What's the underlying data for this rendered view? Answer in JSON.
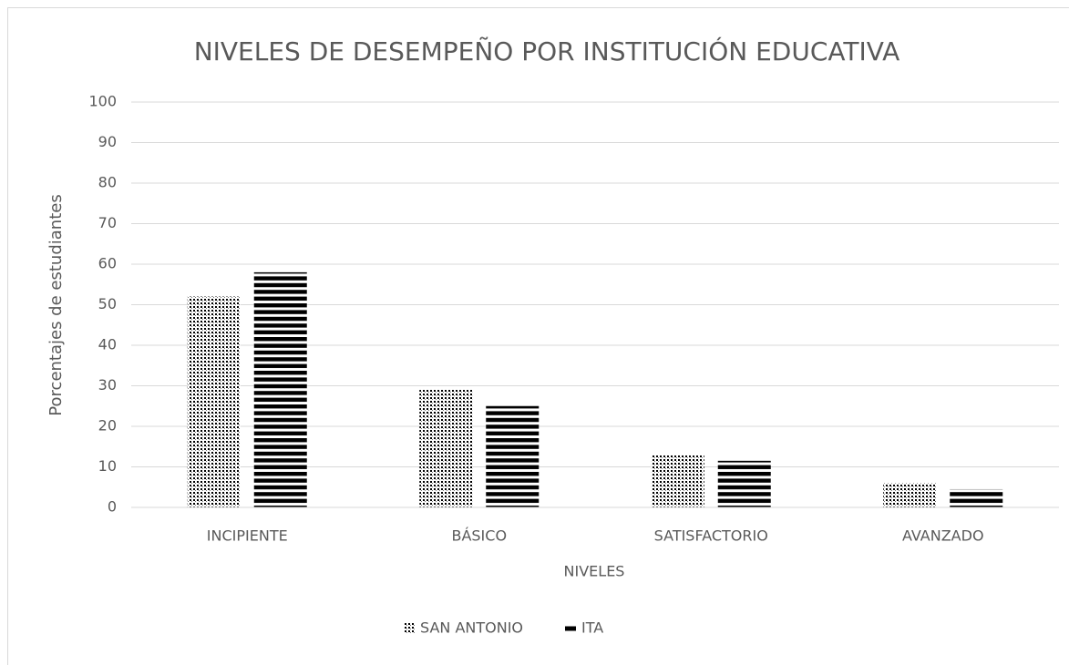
{
  "chart_data": {
    "type": "bar",
    "title": "NIVELES DE DESEMPEÑO POR INSTITUCIÓN EDUCATIVA",
    "x_label": "NIVELES",
    "y_label": "Porcentajes de estudiantes",
    "categories": [
      "INCIPIENTE",
      "BÁSICO",
      "SATISFACTORIO",
      "AVANZADO"
    ],
    "series": [
      {
        "name": "SAN ANTONIO",
        "color": "#000000",
        "pattern": "dots",
        "values": [
          52,
          29,
          13,
          6
        ]
      },
      {
        "name": "ITA",
        "color": "#000000",
        "pattern": "horizontal-stripes",
        "values": [
          58,
          25,
          11.5,
          4.5
        ]
      }
    ],
    "ylim": [
      0,
      100
    ],
    "yticks": [
      0,
      10,
      20,
      30,
      40,
      50,
      60,
      70,
      80,
      90,
      100
    ],
    "grid": true,
    "legend": "bottom"
  }
}
